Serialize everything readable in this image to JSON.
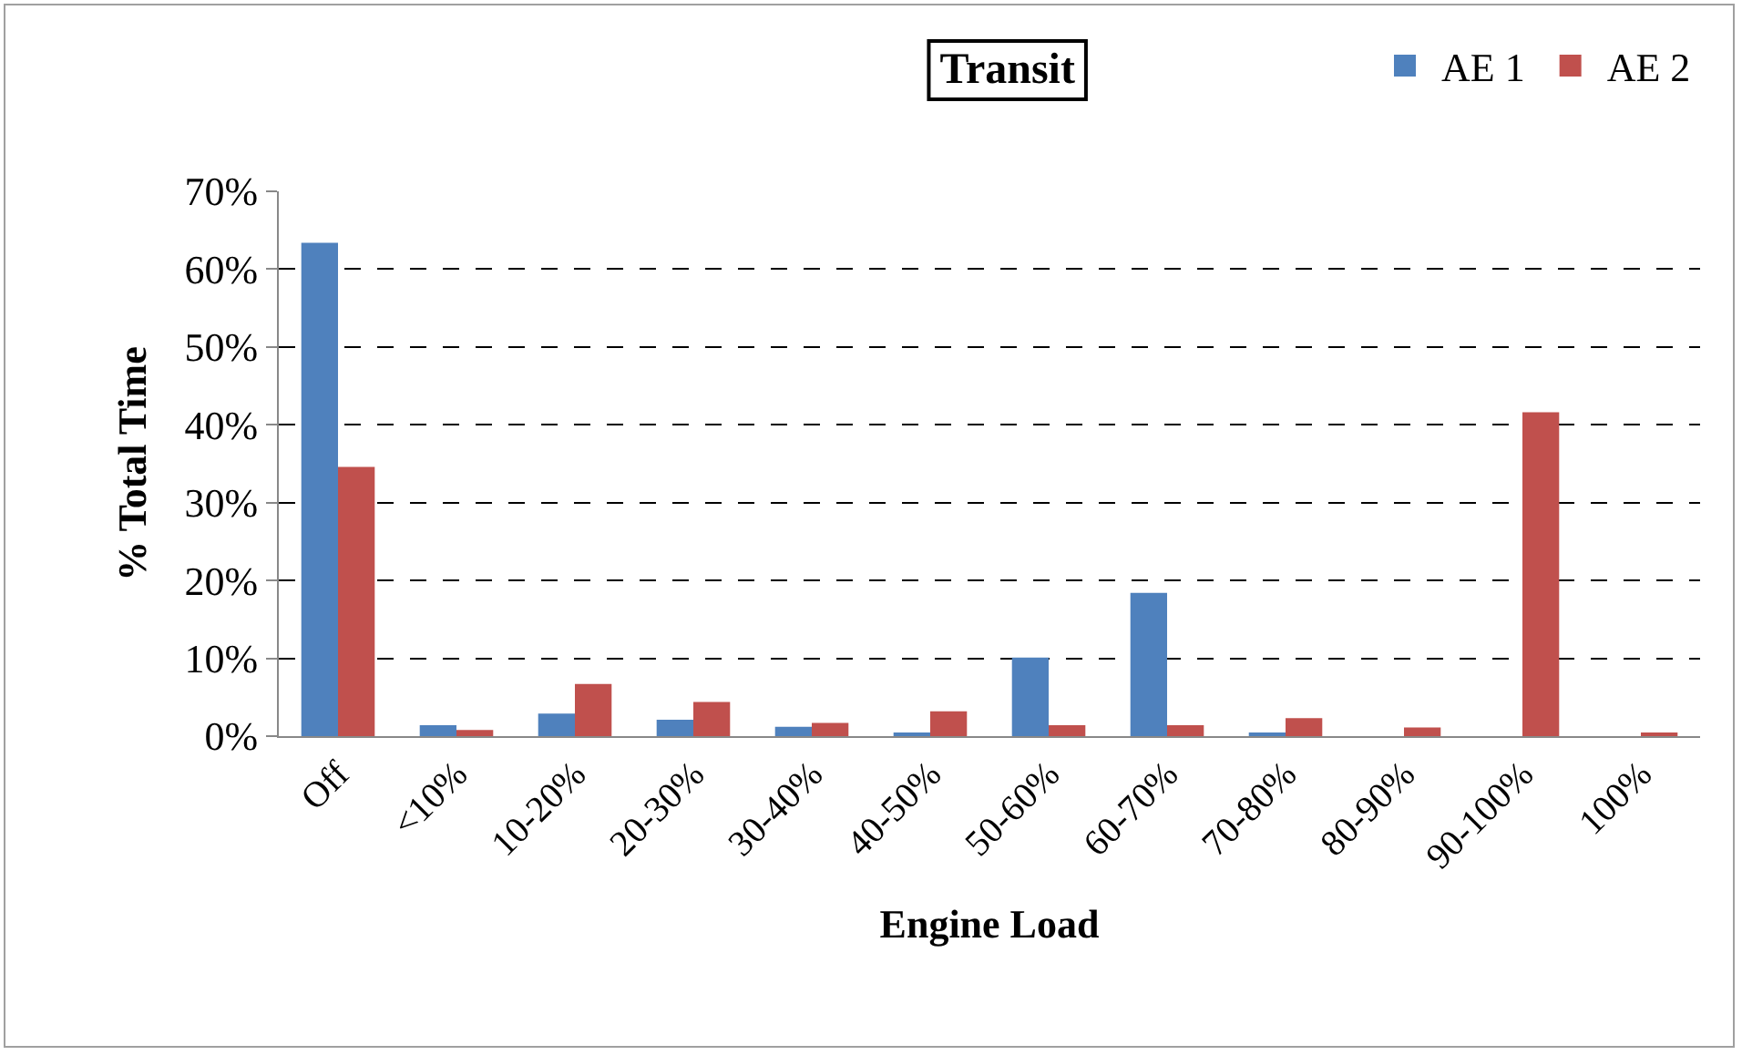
{
  "chart_data": {
    "type": "bar",
    "title": "Transit",
    "xlabel": "Engine Load",
    "ylabel": "% Total Time",
    "categories": [
      "Off",
      "<10%",
      "10-20%",
      "20-30%",
      "30-40%",
      "40-50%",
      "50-60%",
      "60-70%",
      "70-80%",
      "80-90%",
      "90-100%",
      "100%"
    ],
    "series": [
      {
        "name": "AE 1",
        "color": "#4f81bd",
        "values": [
          63.4,
          1.4,
          2.9,
          2.1,
          1.2,
          0.4,
          10.1,
          18.4,
          0.4,
          0,
          0,
          0
        ]
      },
      {
        "name": "AE 2",
        "color": "#c0504d",
        "values": [
          34.6,
          0.8,
          6.7,
          4.4,
          1.7,
          3.2,
          1.4,
          1.4,
          2.3,
          1.1,
          41.6,
          0.3
        ]
      }
    ],
    "ylim": [
      0,
      70
    ],
    "yticks": [
      {
        "value": 0,
        "label": "0%"
      },
      {
        "value": 10,
        "label": "10%"
      },
      {
        "value": 20,
        "label": "20%"
      },
      {
        "value": 30,
        "label": "30%"
      },
      {
        "value": 40,
        "label": "40%"
      },
      {
        "value": 50,
        "label": "50%"
      },
      {
        "value": 60,
        "label": "60%"
      },
      {
        "value": 70,
        "label": "70%"
      }
    ],
    "grid": "y",
    "legend": "top right"
  }
}
